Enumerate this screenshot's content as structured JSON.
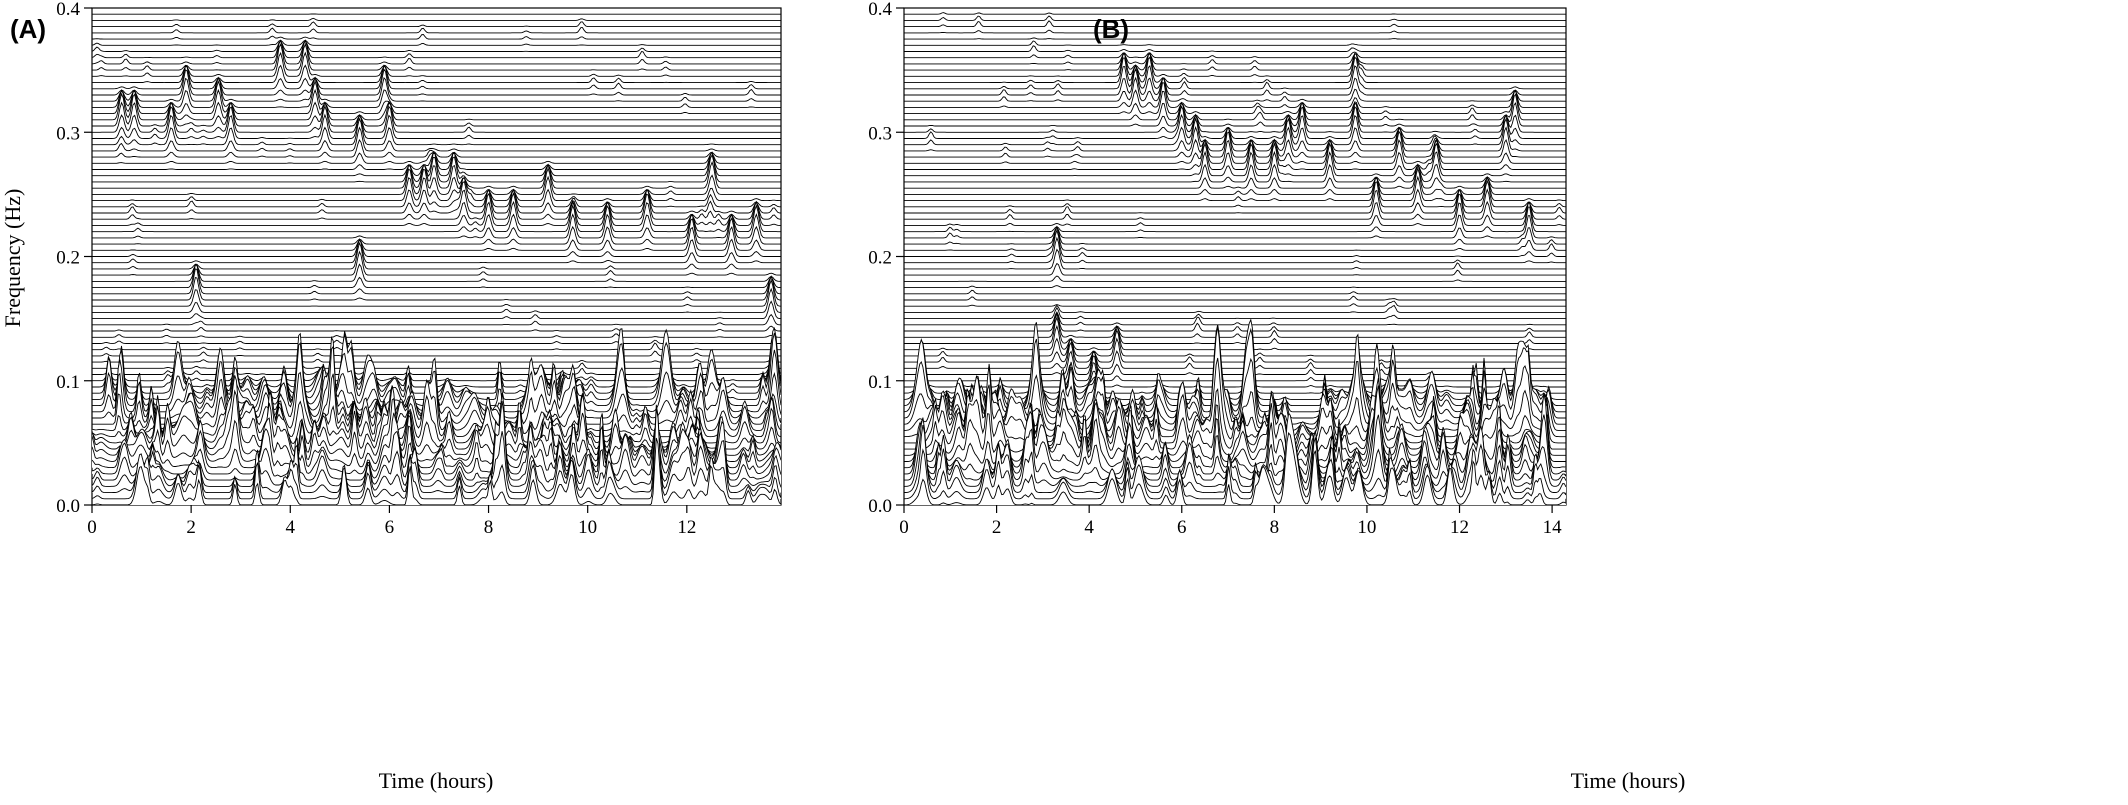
{
  "chart_data": [
    {
      "type": "waterfall",
      "panel_label": "(A)",
      "xlabel": "Time (hours)",
      "ylabel": "Frequency (Hz)",
      "xlim": [
        0,
        13.9
      ],
      "ylim": [
        0,
        0.4
      ],
      "x_ticks": [
        "0",
        "2",
        "4",
        "6",
        "8",
        "10",
        "12"
      ],
      "y_ticks": [
        "0.0",
        "0.1",
        "0.2",
        "0.3",
        "0.4"
      ],
      "grid": false,
      "legend": "none",
      "line_color": "#000000",
      "frequency_step_hz": 0.005,
      "low_band_activity": {
        "freq_hz": [
          0.0,
          0.09
        ],
        "time_hours": [
          0,
          13.9
        ]
      },
      "peaks": [
        {
          "time_h": 0.6,
          "freq_hz": 0.31
        },
        {
          "time_h": 0.85,
          "freq_hz": 0.31
        },
        {
          "time_h": 1.6,
          "freq_hz": 0.3
        },
        {
          "time_h": 1.9,
          "freq_hz": 0.33
        },
        {
          "time_h": 2.55,
          "freq_hz": 0.32
        },
        {
          "time_h": 2.8,
          "freq_hz": 0.3
        },
        {
          "time_h": 3.8,
          "freq_hz": 0.35
        },
        {
          "time_h": 4.3,
          "freq_hz": 0.35
        },
        {
          "time_h": 4.5,
          "freq_hz": 0.32
        },
        {
          "time_h": 4.7,
          "freq_hz": 0.3
        },
        {
          "time_h": 5.4,
          "freq_hz": 0.29
        },
        {
          "time_h": 5.9,
          "freq_hz": 0.33
        },
        {
          "time_h": 6.0,
          "freq_hz": 0.3
        },
        {
          "time_h": 6.4,
          "freq_hz": 0.25
        },
        {
          "time_h": 6.7,
          "freq_hz": 0.25
        },
        {
          "time_h": 6.9,
          "freq_hz": 0.26
        },
        {
          "time_h": 7.3,
          "freq_hz": 0.26
        },
        {
          "time_h": 7.5,
          "freq_hz": 0.24
        },
        {
          "time_h": 8.0,
          "freq_hz": 0.23
        },
        {
          "time_h": 8.5,
          "freq_hz": 0.23
        },
        {
          "time_h": 9.2,
          "freq_hz": 0.25
        },
        {
          "time_h": 9.7,
          "freq_hz": 0.22
        },
        {
          "time_h": 10.4,
          "freq_hz": 0.22
        },
        {
          "time_h": 11.2,
          "freq_hz": 0.23
        },
        {
          "time_h": 12.1,
          "freq_hz": 0.21
        },
        {
          "time_h": 12.5,
          "freq_hz": 0.26
        },
        {
          "time_h": 12.9,
          "freq_hz": 0.21
        },
        {
          "time_h": 13.4,
          "freq_hz": 0.22
        },
        {
          "time_h": 13.7,
          "freq_hz": 0.16
        },
        {
          "time_h": 2.1,
          "freq_hz": 0.17
        },
        {
          "time_h": 5.4,
          "freq_hz": 0.19
        },
        {
          "time_h": 13.7,
          "freq_hz": 0.09
        }
      ]
    },
    {
      "type": "waterfall",
      "panel_label": "(B)",
      "xlabel": "Time (hours)",
      "ylabel": "",
      "xlim": [
        0,
        14.3
      ],
      "ylim": [
        0,
        0.4
      ],
      "x_ticks": [
        "0",
        "2",
        "4",
        "6",
        "8",
        "10",
        "12",
        "14"
      ],
      "y_ticks": [
        "0.0",
        "0.1",
        "0.2",
        "0.3",
        "0.4"
      ],
      "grid": false,
      "legend": "none",
      "line_color": "#000000",
      "frequency_step_hz": 0.005,
      "low_band_activity": {
        "freq_hz": [
          0.0,
          0.08
        ],
        "time_hours": [
          0,
          14.3
        ]
      },
      "peaks": [
        {
          "time_h": 3.3,
          "freq_hz": 0.2
        },
        {
          "time_h": 3.3,
          "freq_hz": 0.13
        },
        {
          "time_h": 3.6,
          "freq_hz": 0.11
        },
        {
          "time_h": 4.1,
          "freq_hz": 0.1
        },
        {
          "time_h": 4.6,
          "freq_hz": 0.12
        },
        {
          "time_h": 4.75,
          "freq_hz": 0.34
        },
        {
          "time_h": 5.0,
          "freq_hz": 0.33
        },
        {
          "time_h": 5.3,
          "freq_hz": 0.34
        },
        {
          "time_h": 5.6,
          "freq_hz": 0.32
        },
        {
          "time_h": 6.0,
          "freq_hz": 0.3
        },
        {
          "time_h": 6.3,
          "freq_hz": 0.29
        },
        {
          "time_h": 6.5,
          "freq_hz": 0.27
        },
        {
          "time_h": 7.0,
          "freq_hz": 0.28
        },
        {
          "time_h": 7.5,
          "freq_hz": 0.27
        },
        {
          "time_h": 8.0,
          "freq_hz": 0.27
        },
        {
          "time_h": 8.3,
          "freq_hz": 0.29
        },
        {
          "time_h": 8.6,
          "freq_hz": 0.3
        },
        {
          "time_h": 9.2,
          "freq_hz": 0.27
        },
        {
          "time_h": 9.75,
          "freq_hz": 0.34
        },
        {
          "time_h": 9.75,
          "freq_hz": 0.3
        },
        {
          "time_h": 10.2,
          "freq_hz": 0.24
        },
        {
          "time_h": 10.7,
          "freq_hz": 0.28
        },
        {
          "time_h": 11.1,
          "freq_hz": 0.25
        },
        {
          "time_h": 11.5,
          "freq_hz": 0.27
        },
        {
          "time_h": 12.0,
          "freq_hz": 0.23
        },
        {
          "time_h": 12.6,
          "freq_hz": 0.24
        },
        {
          "time_h": 13.0,
          "freq_hz": 0.29
        },
        {
          "time_h": 13.2,
          "freq_hz": 0.31
        },
        {
          "time_h": 13.5,
          "freq_hz": 0.22
        }
      ]
    }
  ]
}
